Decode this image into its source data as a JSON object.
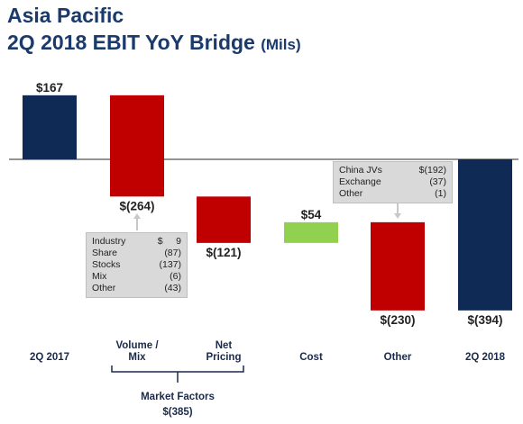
{
  "title": "Asia Pacific",
  "subtitle_main": "2Q 2018 EBIT YoY Bridge",
  "subtitle_unit": "(Mils)",
  "chart_data": {
    "type": "waterfall",
    "categories": [
      "2Q 2017",
      "Volume / Mix",
      "Net Pricing",
      "Cost",
      "Other",
      "2Q 2018"
    ],
    "bars": [
      {
        "category": "2Q 2017",
        "start": 0,
        "end": 167,
        "value": 167,
        "kind": "total",
        "color": "#0f2a55",
        "label": "$167"
      },
      {
        "category": "Volume / Mix",
        "start": 167,
        "end": -97,
        "value": -264,
        "kind": "delta",
        "color": "#c00000",
        "label": "$(264)"
      },
      {
        "category": "Net Pricing",
        "start": -97,
        "end": -218,
        "value": -121,
        "kind": "delta",
        "color": "#c00000",
        "label": "$(121)"
      },
      {
        "category": "Cost",
        "start": -218,
        "end": -164,
        "value": 54,
        "kind": "delta",
        "color": "#92d050",
        "label": "$54"
      },
      {
        "category": "Other",
        "start": -164,
        "end": -394,
        "value": -230,
        "kind": "delta",
        "color": "#c00000",
        "label": "$(230)"
      },
      {
        "category": "2Q 2018",
        "start": 0,
        "end": -394,
        "value": -394,
        "kind": "total",
        "color": "#0f2a55",
        "label": "$(394)"
      }
    ],
    "category_labels": [
      [
        "2Q 2017"
      ],
      [
        "Volume /",
        "Mix"
      ],
      [
        "Net",
        "Pricing"
      ],
      [
        "Cost"
      ],
      [
        "Other"
      ],
      [
        "2Q 2018"
      ]
    ],
    "group": {
      "name": "Market Factors",
      "value": "$(385)",
      "members": [
        "Volume / Mix",
        "Net Pricing"
      ]
    },
    "ylim": [
      -400,
      170
    ],
    "callouts": [
      {
        "attached_to": "Volume / Mix",
        "rows": [
          {
            "label": "Industry",
            "value": "$     9"
          },
          {
            "label": "Share",
            "value": "(87)"
          },
          {
            "label": "Stocks",
            "value": "(137)"
          },
          {
            "label": "Mix",
            "value": "(6)"
          },
          {
            "label": "Other",
            "value": "(43)"
          }
        ]
      },
      {
        "attached_to": "Other",
        "rows": [
          {
            "label": "China JVs",
            "value": "$(192)"
          },
          {
            "label": "Exchange",
            "value": "(37)"
          },
          {
            "label": "Other",
            "value": "(1)"
          }
        ]
      }
    ]
  }
}
